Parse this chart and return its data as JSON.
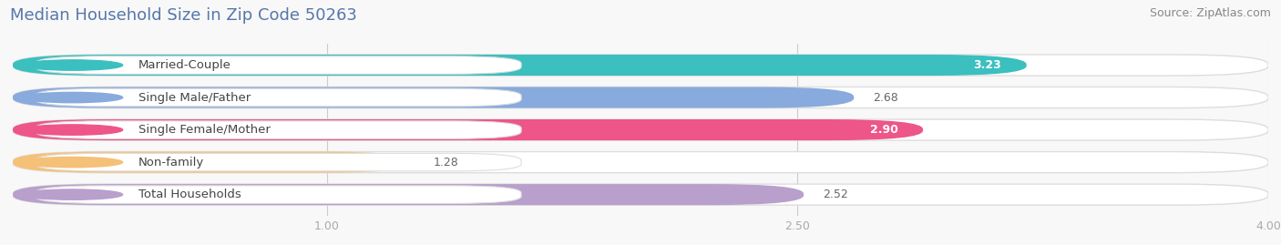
{
  "title": "Median Household Size in Zip Code 50263",
  "source": "Source: ZipAtlas.com",
  "categories": [
    "Married-Couple",
    "Single Male/Father",
    "Single Female/Mother",
    "Non-family",
    "Total Households"
  ],
  "values": [
    3.23,
    2.68,
    2.9,
    1.28,
    2.52
  ],
  "bar_colors": [
    "#3bbfbf",
    "#88aadd",
    "#ee5588",
    "#f5c078",
    "#b89fcc"
  ],
  "value_inside": [
    true,
    false,
    true,
    false,
    false
  ],
  "xlim": [
    0,
    4.0
  ],
  "xticks": [
    1.0,
    2.5,
    4.0
  ],
  "title_fontsize": 13,
  "source_fontsize": 9,
  "label_fontsize": 9.5,
  "value_fontsize": 9,
  "tick_fontsize": 9,
  "bg_color": "#f0f0f0",
  "bar_bg_color": "#e0e0e0",
  "title_color": "#5577aa",
  "source_color": "#888888",
  "tick_color": "#aaaaaa",
  "bar_height": 0.65
}
